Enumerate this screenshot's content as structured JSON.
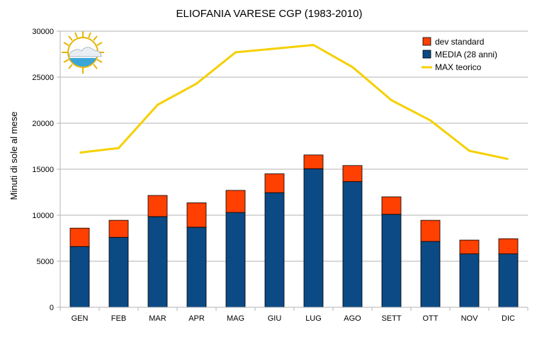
{
  "chart_data": {
    "type": "bar",
    "title": "ELIOFANIA VARESE CGP (1983-2010)",
    "xlabel": "",
    "ylabel": "Minuti di sole al mese",
    "ylim": [
      0,
      30000
    ],
    "y_ticks": [
      "0",
      "5000",
      "10000",
      "15000",
      "20000",
      "25000",
      "30000"
    ],
    "categories": [
      "GEN",
      "FEB",
      "MAR",
      "APR",
      "MAG",
      "GIU",
      "LUG",
      "AGO",
      "SETT",
      "OTT",
      "NOV",
      "DIC"
    ],
    "grid": "horizontal",
    "legend_position": "top-right",
    "stacked": true,
    "series": [
      {
        "name": "MEDIA (28 anni)",
        "kind": "bar",
        "color": "#0b4a85",
        "values": [
          6600,
          7600,
          9850,
          8700,
          10300,
          12450,
          15050,
          13650,
          10100,
          7150,
          5800,
          5800
        ]
      },
      {
        "name": "dev standard",
        "kind": "bar",
        "color": "#ff4000",
        "values": [
          2000,
          1850,
          2300,
          2650,
          2400,
          2050,
          1500,
          1750,
          1900,
          2300,
          1500,
          1650
        ]
      },
      {
        "name": "MAX teorico",
        "kind": "line",
        "color": "#f5d000",
        "values": [
          16800,
          17300,
          22000,
          24300,
          27700,
          28100,
          28500,
          26100,
          22500,
          20300,
          17000,
          16100
        ]
      }
    ]
  }
}
